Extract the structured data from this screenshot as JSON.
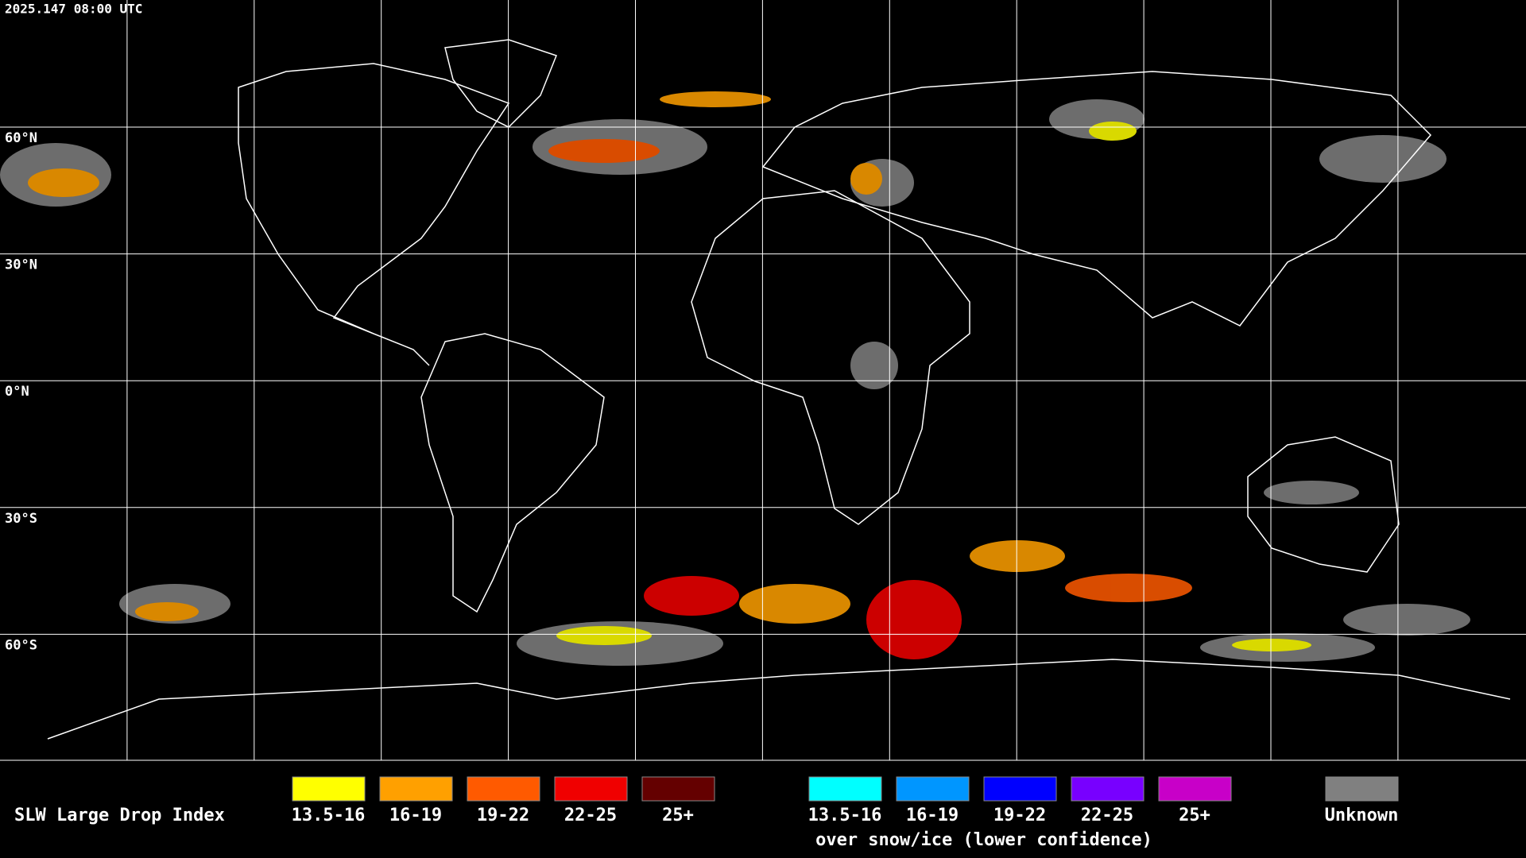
{
  "header": {
    "timestamp": "2025.147 08:00 UTC"
  },
  "grid": {
    "lat_labels": [
      "60°N",
      "30°N",
      "0°N",
      "30°S",
      "60°S"
    ]
  },
  "legend": {
    "title": "SLW Large Drop Index",
    "normal": [
      {
        "label": "13.5-16",
        "color": "#ffff00"
      },
      {
        "label": "16-19",
        "color": "#ffa000"
      },
      {
        "label": "19-22",
        "color": "#ff5a00"
      },
      {
        "label": "22-25",
        "color": "#f00000"
      },
      {
        "label": "25+",
        "color": "#640000"
      }
    ],
    "snow": [
      {
        "label": "13.5-16",
        "color": "#00ffff"
      },
      {
        "label": "16-19",
        "color": "#0096ff"
      },
      {
        "label": "19-22",
        "color": "#0000ff"
      },
      {
        "label": "22-25",
        "color": "#7800ff"
      },
      {
        "label": "25+",
        "color": "#c800c8"
      }
    ],
    "snow_caption": "over snow/ice (lower confidence)",
    "unknown": {
      "label": "Unknown",
      "color": "#808080"
    }
  }
}
